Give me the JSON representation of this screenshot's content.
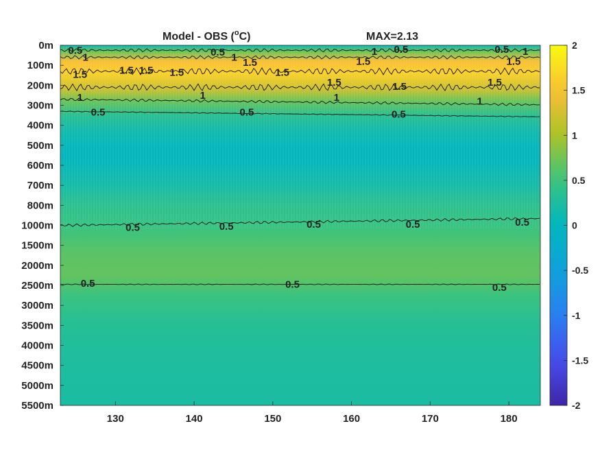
{
  "chart_data": {
    "type": "heatmap",
    "title": "Model - OBS (°C)",
    "title_main": "Model - OBS (",
    "title_sup": "o",
    "title_unit": "C)",
    "max_label": "MAX=2.13",
    "xlim": [
      123,
      184
    ],
    "x_ticks": [
      130,
      140,
      150,
      160,
      170,
      180
    ],
    "y_tick_labels": [
      "0m",
      "100m",
      "200m",
      "300m",
      "400m",
      "500m",
      "600m",
      "700m",
      "800m",
      "1000m",
      "1500m",
      "2000m",
      "2500m",
      "3000m",
      "3500m",
      "4000m",
      "4500m",
      "5000m",
      "5500m"
    ],
    "colorbar": {
      "range": [
        -2,
        2
      ],
      "ticks": [
        "2",
        "1.5",
        "1",
        "0.5",
        "0",
        "-0.5",
        "-1",
        "-1.5",
        "-2"
      ],
      "colormap": "parula"
    },
    "depth_profile": [
      {
        "level": 0.0,
        "value": 0.05
      },
      {
        "level": 0.3,
        "value": 0.7
      },
      {
        "level": 0.8,
        "value": 1.5
      },
      {
        "level": 1.4,
        "value": 1.65
      },
      {
        "level": 2.2,
        "value": 1.2
      },
      {
        "level": 2.8,
        "value": 0.7
      },
      {
        "level": 3.5,
        "value": 0.35
      },
      {
        "level": 4.5,
        "value": 0.1
      },
      {
        "level": 5.5,
        "value": 0.0
      },
      {
        "level": 6.8,
        "value": 0.15
      },
      {
        "level": 8.0,
        "value": 0.38
      },
      {
        "level": 9.0,
        "value": 0.48
      },
      {
        "level": 10.5,
        "value": 0.65
      },
      {
        "level": 11.5,
        "value": 0.68
      },
      {
        "level": 12.5,
        "value": 0.5
      },
      {
        "level": 14.0,
        "value": 0.32
      },
      {
        "level": 16.0,
        "value": 0.25
      },
      {
        "level": 18.0,
        "value": 0.22
      }
    ],
    "contour_labels": [
      {
        "text": "0.5",
        "x": 124.9,
        "level": 0.25
      },
      {
        "text": "1",
        "x": 126.2,
        "level": 0.6
      },
      {
        "text": "0.5",
        "x": 143.0,
        "level": 0.35
      },
      {
        "text": "1",
        "x": 145.1,
        "level": 0.6
      },
      {
        "text": "1.5",
        "x": 147.1,
        "level": 0.85
      },
      {
        "text": "1",
        "x": 162.9,
        "level": 0.3
      },
      {
        "text": "0.5",
        "x": 166.3,
        "level": 0.2
      },
      {
        "text": "0.5",
        "x": 179.1,
        "level": 0.2
      },
      {
        "text": "1",
        "x": 182.1,
        "level": 0.3
      },
      {
        "text": "1.5",
        "x": 161.5,
        "level": 0.8
      },
      {
        "text": "1.5",
        "x": 180.6,
        "level": 0.8
      },
      {
        "text": "1.5",
        "x": 125.5,
        "level": 1.45
      },
      {
        "text": "1.5",
        "x": 131.4,
        "level": 1.25
      },
      {
        "text": "1.5",
        "x": 133.9,
        "level": 1.25
      },
      {
        "text": "1.5",
        "x": 137.8,
        "level": 1.35
      },
      {
        "text": "1.5",
        "x": 151.2,
        "level": 1.35
      },
      {
        "text": "1.5",
        "x": 157.8,
        "level": 1.85
      },
      {
        "text": "1.5",
        "x": 166.1,
        "level": 2.05
      },
      {
        "text": "1.5",
        "x": 178.2,
        "level": 1.85
      },
      {
        "text": "1",
        "x": 125.5,
        "level": 2.6
      },
      {
        "text": "1",
        "x": 141.1,
        "level": 2.5
      },
      {
        "text": "1",
        "x": 158.1,
        "level": 2.6
      },
      {
        "text": "1",
        "x": 176.3,
        "level": 2.8
      },
      {
        "text": "0.5",
        "x": 127.8,
        "level": 3.35
      },
      {
        "text": "0.5",
        "x": 146.7,
        "level": 3.35
      },
      {
        "text": "0.5",
        "x": 166.0,
        "level": 3.45
      },
      {
        "text": "0.5",
        "x": 132.2,
        "level": 9.1
      },
      {
        "text": "0.5",
        "x": 144.1,
        "level": 9.05
      },
      {
        "text": "0.5",
        "x": 155.2,
        "level": 8.95
      },
      {
        "text": "0.5",
        "x": 167.8,
        "level": 8.95
      },
      {
        "text": "0.5",
        "x": 181.7,
        "level": 8.85
      },
      {
        "text": "0.5",
        "x": 126.5,
        "level": 11.9
      },
      {
        "text": "0.5",
        "x": 152.5,
        "level": 11.95
      },
      {
        "text": "0.5",
        "x": 178.8,
        "level": 12.1
      }
    ]
  }
}
